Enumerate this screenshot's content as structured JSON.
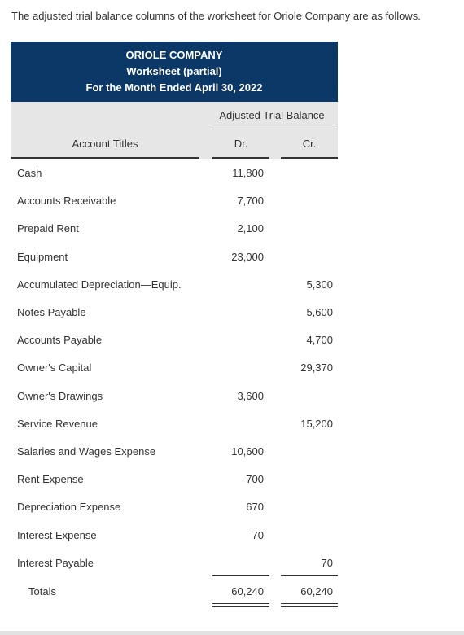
{
  "intro": "The adjusted trial balance columns of the worksheet for Oriole Company are as follows.",
  "header": {
    "company": "ORIOLE COMPANY",
    "subtitle": "Worksheet (partial)",
    "period": "For the Month Ended April 30, 2022"
  },
  "columns": {
    "section": "Adjusted Trial Balance",
    "account_titles": "Account Titles",
    "dr": "Dr.",
    "cr": "Cr."
  },
  "rows": [
    {
      "name": "Cash",
      "dr": "11,800",
      "cr": ""
    },
    {
      "name": "Accounts Receivable",
      "dr": "7,700",
      "cr": ""
    },
    {
      "name": "Prepaid Rent",
      "dr": "2,100",
      "cr": ""
    },
    {
      "name": "Equipment",
      "dr": "23,000",
      "cr": ""
    },
    {
      "name": "Accumulated Depreciation—Equip.",
      "dr": "",
      "cr": "5,300"
    },
    {
      "name": "Notes Payable",
      "dr": "",
      "cr": "5,600"
    },
    {
      "name": "Accounts Payable",
      "dr": "",
      "cr": "4,700"
    },
    {
      "name": "Owner's Capital",
      "dr": "",
      "cr": "29,370"
    },
    {
      "name": "Owner's Drawings",
      "dr": "3,600",
      "cr": ""
    },
    {
      "name": "Service Revenue",
      "dr": "",
      "cr": "15,200"
    },
    {
      "name": "Salaries and Wages Expense",
      "dr": "10,600",
      "cr": ""
    },
    {
      "name": "Rent Expense",
      "dr": "700",
      "cr": ""
    },
    {
      "name": "Depreciation Expense",
      "dr": "670",
      "cr": ""
    },
    {
      "name": "Interest Expense",
      "dr": "70",
      "cr": ""
    },
    {
      "name": "Interest Payable",
      "dr": "",
      "cr": "70"
    }
  ],
  "totals": {
    "name": "Totals",
    "dr": "60,240",
    "cr": "60,240"
  }
}
